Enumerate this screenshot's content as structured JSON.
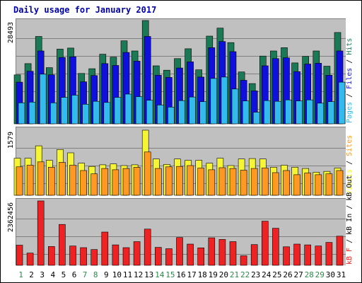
{
  "chart_data": {
    "type": "bar",
    "title": "Daily usage for January 2017",
    "categories": [
      "1",
      "2",
      "3",
      "4",
      "5",
      "6",
      "7",
      "8",
      "9",
      "10",
      "11",
      "12",
      "13",
      "14",
      "15",
      "16",
      "17",
      "18",
      "19",
      "20",
      "21",
      "22",
      "23",
      "24",
      "25",
      "26",
      "27",
      "28",
      "29",
      "30",
      "31"
    ],
    "weekend_days": [
      "1",
      "7",
      "8",
      "14",
      "15",
      "21",
      "22",
      "28",
      "29"
    ],
    "grid": true,
    "panels": [
      {
        "id": "top",
        "ylabel_parts": [
          "Pages",
          "Files",
          "Hits"
        ],
        "max_label": "28493",
        "ylim": [
          0,
          28493
        ],
        "series": [
          {
            "name": "Hits",
            "color": "#1b7a55",
            "values": [
              13500,
              16600,
              24100,
              15500,
              20600,
              20900,
              13900,
              15200,
              19200,
              18400,
              22900,
              20100,
              28493,
              16000,
              14800,
              18000,
              20700,
              14900,
              24200,
              26400,
              22400,
              14300,
              11100,
              18700,
              20100,
              21000,
              16800,
              18600,
              20100,
              15900,
              25200
            ]
          },
          {
            "name": "Files",
            "color": "#1010dd",
            "values": [
              11500,
              14500,
              20100,
              13500,
              18300,
              18500,
              11600,
              13300,
              16600,
              16100,
              19700,
              17300,
              24100,
              13400,
              12800,
              15400,
              17100,
              12900,
              21000,
              22700,
              19900,
              12000,
              9100,
              16000,
              18000,
              18200,
              14400,
              16500,
              16700,
              13400,
              20100
            ]
          },
          {
            "name": "Pages",
            "color": "#33bbee",
            "values": [
              5800,
              6000,
              13700,
              5800,
              7300,
              7900,
              5400,
              6200,
              5900,
              7300,
              8200,
              7500,
              6500,
              5200,
              4600,
              6400,
              7400,
              6100,
              12500,
              12900,
              9600,
              6300,
              3200,
              6400,
              6200,
              6600,
              6300,
              6600,
              5700,
              6100,
              11500
            ]
          }
        ]
      },
      {
        "id": "mid",
        "ylabel_parts": [
          "Visits",
          "Sites"
        ],
        "max_label": "1579",
        "ylim": [
          0,
          1579
        ],
        "series": [
          {
            "name": "Visits",
            "color": "#f5f535",
            "values": [
              900,
              900,
              1200,
              850,
              1110,
              1030,
              780,
              700,
              740,
              760,
              720,
              740,
              1579,
              880,
              750,
              880,
              850,
              850,
              780,
              900,
              720,
              880,
              890,
              880,
              680,
              730,
              680,
              650,
              560,
              580,
              660
            ]
          },
          {
            "name": "Sites",
            "color": "#ff9922",
            "values": [
              690,
              730,
              810,
              680,
              800,
              730,
              600,
              520,
              650,
              620,
              650,
              680,
              1050,
              650,
              690,
              700,
              720,
              660,
              620,
              670,
              650,
              610,
              650,
              660,
              550,
              600,
              500,
              540,
              500,
              520,
              600
            ]
          }
        ]
      },
      {
        "id": "bot",
        "ylabel_parts": [
          "kB F",
          "kB In",
          "kB Out"
        ],
        "max_label": "2362456",
        "ylim": [
          0,
          2362456
        ],
        "series": [
          {
            "name": "kB F",
            "color": "#ee2222",
            "values": [
              740000,
              450000,
              2362456,
              690000,
              1500000,
              710000,
              650000,
              580000,
              1220000,
              750000,
              650000,
              870000,
              1330000,
              660000,
              610000,
              1020000,
              780000,
              640000,
              1010000,
              950000,
              870000,
              350000,
              760000,
              1620000,
              1360000,
              680000,
              780000,
              750000,
              710000,
              840000,
              1070000
            ]
          }
        ]
      }
    ]
  }
}
